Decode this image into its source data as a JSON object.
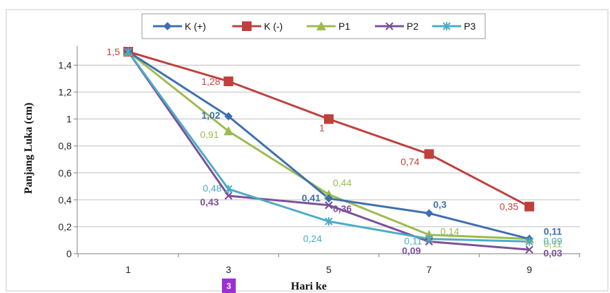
{
  "chart_data": {
    "type": "line",
    "categories": [
      "1",
      "3",
      "5",
      "7",
      "9"
    ],
    "x": [
      1,
      3,
      5,
      7,
      9
    ],
    "xlabel": "Hari ke",
    "ylabel": "Panjang Luka (cm)",
    "ylim": [
      0,
      1.4
    ],
    "yticks": [
      "0",
      "0,2",
      "0,4",
      "0,6",
      "0,8",
      "1",
      "1,2",
      "1,4"
    ],
    "grid": true,
    "legend": "top",
    "series": [
      {
        "name": "K (+)",
        "color": "#3d6fb0",
        "marker": "diamond",
        "values": [
          1.5,
          1.02,
          0.41,
          0.3,
          0.11
        ],
        "labels": [
          "",
          "1,02",
          "0,41",
          "0,3",
          "0,11"
        ]
      },
      {
        "name": "K (-)",
        "color": "#c0403d",
        "marker": "square",
        "values": [
          1.5,
          1.28,
          1.0,
          0.74,
          0.35
        ],
        "labels": [
          "1,5",
          "1,28",
          "1",
          "0,74",
          "0,35"
        ]
      },
      {
        "name": "P1",
        "color": "#9bbb4f",
        "marker": "triangle",
        "values": [
          1.5,
          0.91,
          0.44,
          0.14,
          0.11
        ],
        "labels": [
          "",
          "0,91",
          "0,44",
          "0,14",
          "0,11"
        ]
      },
      {
        "name": "P2",
        "color": "#7b4f9a",
        "marker": "x",
        "values": [
          1.5,
          0.43,
          0.36,
          0.09,
          0.03
        ],
        "labels": [
          "",
          "0,43",
          "0,36",
          "0,09",
          "0,03"
        ]
      },
      {
        "name": "P3",
        "color": "#4bacc6",
        "marker": "star",
        "values": [
          1.5,
          0.48,
          0.24,
          0.11,
          0.09
        ],
        "labels": [
          "",
          "0,48",
          "0,24",
          "0,11",
          "0,09"
        ]
      }
    ]
  },
  "badge": {
    "text": "3",
    "color": "#9b30d9"
  }
}
